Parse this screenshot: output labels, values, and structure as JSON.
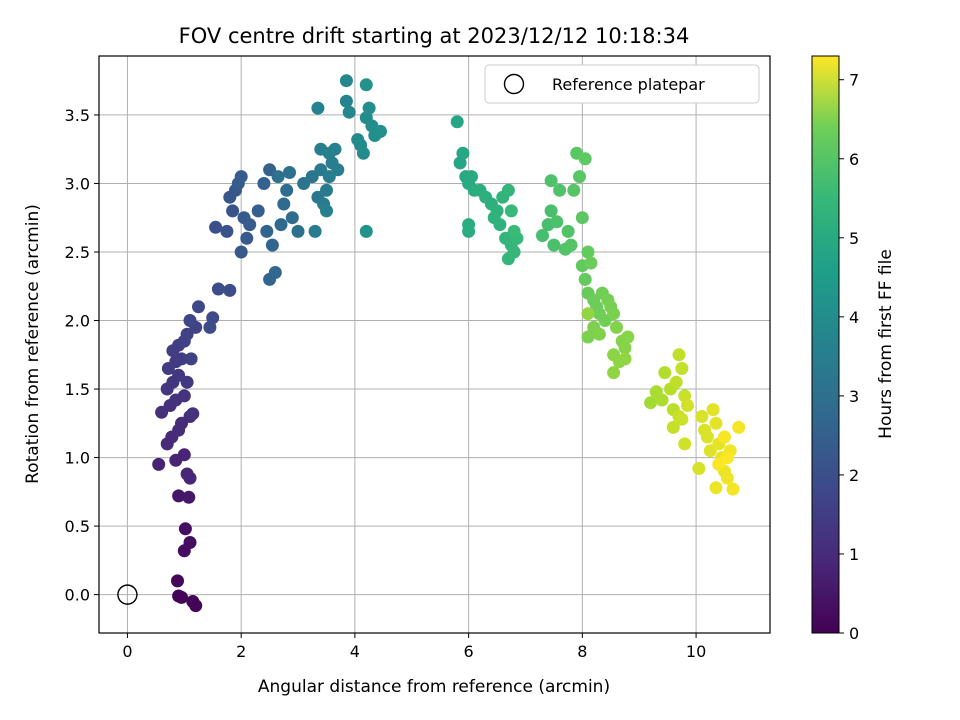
{
  "chart_data": {
    "type": "scatter",
    "title": "FOV centre drift starting at 2023/12/12 10:18:34",
    "xlabel": "Angular distance from reference (arcmin)",
    "ylabel": "Rotation from reference (arcmin)",
    "xlim": [
      -0.5,
      11.3
    ],
    "ylim": [
      -0.28,
      3.93
    ],
    "xticks": [
      0,
      2,
      4,
      6,
      8,
      10
    ],
    "yticks": [
      0.0,
      0.5,
      1.0,
      1.5,
      2.0,
      2.5,
      3.0,
      3.5
    ],
    "ytick_labels": [
      "0.0",
      "0.5",
      "1.0",
      "1.5",
      "2.0",
      "2.5",
      "3.0",
      "3.5"
    ],
    "grid": true,
    "colormap": "viridis",
    "colorbar": {
      "label": "Hours from first FF file",
      "min": 0,
      "max": 7.3,
      "ticks": [
        0,
        1,
        2,
        3,
        4,
        5,
        6,
        7
      ]
    },
    "legend": {
      "position": "top-right",
      "entries": [
        {
          "label": "Reference platepar",
          "marker": "open-circle",
          "color": "#000000"
        }
      ]
    },
    "reference_point": {
      "x": 0,
      "y": 0
    },
    "series": [
      {
        "color_by": "hours",
        "points": [
          [
            1.15,
            -0.05,
            0.05
          ],
          [
            1.2,
            -0.08,
            0.06
          ],
          [
            0.95,
            -0.02,
            0.07
          ],
          [
            0.9,
            -0.01,
            0.08
          ],
          [
            0.88,
            0.1,
            0.12
          ],
          [
            1.0,
            0.32,
            0.25
          ],
          [
            1.1,
            0.38,
            0.28
          ],
          [
            1.02,
            0.48,
            0.3
          ],
          [
            0.9,
            0.72,
            0.45
          ],
          [
            1.08,
            0.71,
            0.47
          ],
          [
            0.55,
            0.95,
            0.7
          ],
          [
            0.85,
            0.98,
            0.72
          ],
          [
            1.0,
            1.02,
            0.75
          ],
          [
            1.05,
            0.88,
            0.78
          ],
          [
            1.1,
            0.85,
            0.8
          ],
          [
            0.7,
            1.1,
            0.85
          ],
          [
            0.78,
            1.15,
            0.88
          ],
          [
            0.9,
            1.2,
            0.9
          ],
          [
            0.95,
            1.25,
            0.92
          ],
          [
            1.1,
            1.3,
            0.95
          ],
          [
            0.6,
            1.33,
            1.0
          ],
          [
            0.75,
            1.38,
            1.02
          ],
          [
            0.85,
            1.42,
            1.05
          ],
          [
            1.0,
            1.45,
            1.08
          ],
          [
            1.15,
            1.32,
            1.1
          ],
          [
            0.7,
            1.5,
            1.15
          ],
          [
            0.8,
            1.55,
            1.18
          ],
          [
            0.9,
            1.6,
            1.2
          ],
          [
            1.05,
            1.55,
            1.22
          ],
          [
            0.72,
            1.65,
            1.25
          ],
          [
            0.85,
            1.7,
            1.28
          ],
          [
            0.95,
            1.72,
            1.3
          ],
          [
            0.8,
            1.78,
            1.35
          ],
          [
            0.9,
            1.82,
            1.38
          ],
          [
            1.0,
            1.85,
            1.4
          ],
          [
            1.12,
            1.72,
            1.42
          ],
          [
            1.05,
            1.9,
            1.45
          ],
          [
            1.2,
            1.95,
            1.5
          ],
          [
            1.1,
            2.0,
            1.55
          ],
          [
            1.25,
            2.1,
            1.6
          ],
          [
            1.5,
            2.02,
            1.65
          ],
          [
            1.45,
            1.95,
            1.68
          ],
          [
            1.6,
            2.23,
            1.72
          ],
          [
            1.8,
            2.22,
            1.75
          ],
          [
            1.55,
            2.68,
            1.8
          ],
          [
            1.75,
            2.65,
            1.85
          ],
          [
            1.85,
            2.8,
            1.9
          ],
          [
            1.8,
            2.9,
            1.95
          ],
          [
            1.9,
            2.95,
            2.0
          ],
          [
            2.0,
            2.5,
            2.02
          ],
          [
            2.1,
            2.6,
            2.05
          ],
          [
            2.05,
            2.75,
            2.08
          ],
          [
            2.15,
            2.7,
            2.1
          ],
          [
            2.0,
            3.05,
            2.12
          ],
          [
            1.95,
            3.0,
            2.15
          ],
          [
            2.3,
            2.8,
            2.2
          ],
          [
            2.4,
            3.0,
            2.25
          ],
          [
            2.5,
            3.1,
            2.3
          ],
          [
            2.45,
            2.65,
            2.35
          ],
          [
            2.55,
            2.55,
            2.38
          ],
          [
            2.6,
            2.35,
            2.4
          ],
          [
            2.5,
            2.3,
            2.42
          ],
          [
            2.7,
            2.7,
            2.45
          ],
          [
            2.75,
            2.85,
            2.5
          ],
          [
            2.8,
            2.95,
            2.55
          ],
          [
            2.9,
            2.75,
            2.6
          ],
          [
            3.0,
            2.65,
            2.65
          ],
          [
            2.65,
            3.05,
            2.7
          ],
          [
            2.85,
            3.08,
            2.72
          ],
          [
            3.1,
            3.0,
            2.8
          ],
          [
            3.25,
            3.05,
            2.85
          ],
          [
            3.35,
            2.9,
            2.9
          ],
          [
            3.4,
            3.1,
            2.95
          ],
          [
            3.5,
            2.95,
            3.0
          ],
          [
            3.3,
            2.65,
            3.02
          ],
          [
            3.45,
            2.85,
            3.05
          ],
          [
            3.55,
            3.05,
            3.08
          ],
          [
            3.6,
            3.15,
            3.1
          ],
          [
            3.7,
            3.1,
            3.12
          ],
          [
            3.4,
            3.25,
            3.15
          ],
          [
            3.55,
            3.22,
            3.18
          ],
          [
            3.65,
            3.25,
            3.2
          ],
          [
            3.5,
            2.8,
            3.22
          ],
          [
            3.35,
            3.55,
            3.25
          ],
          [
            3.85,
            3.6,
            3.3
          ],
          [
            3.9,
            3.52,
            3.35
          ],
          [
            3.85,
            3.75,
            3.4
          ],
          [
            4.05,
            3.32,
            3.45
          ],
          [
            4.1,
            3.28,
            3.5
          ],
          [
            4.15,
            3.22,
            3.52
          ],
          [
            4.2,
            3.48,
            3.55
          ],
          [
            4.25,
            3.55,
            3.58
          ],
          [
            4.3,
            3.42,
            3.6
          ],
          [
            4.35,
            3.35,
            3.62
          ],
          [
            4.45,
            3.38,
            3.65
          ],
          [
            4.2,
            3.72,
            3.7
          ],
          [
            4.2,
            2.65,
            3.75
          ],
          [
            5.8,
            3.45,
            4.3
          ],
          [
            5.85,
            3.15,
            4.32
          ],
          [
            5.9,
            3.22,
            4.35
          ],
          [
            5.95,
            3.05,
            4.38
          ],
          [
            6.0,
            3.0,
            4.4
          ],
          [
            6.05,
            3.05,
            4.45
          ],
          [
            6.1,
            2.95,
            4.48
          ],
          [
            6.0,
            2.7,
            4.5
          ],
          [
            6.0,
            2.65,
            4.52
          ],
          [
            6.2,
            2.95,
            4.55
          ],
          [
            6.3,
            2.9,
            4.6
          ],
          [
            6.4,
            2.85,
            4.62
          ],
          [
            6.5,
            2.8,
            4.65
          ],
          [
            6.45,
            2.75,
            4.7
          ],
          [
            6.55,
            2.7,
            4.72
          ],
          [
            6.6,
            2.9,
            4.75
          ],
          [
            6.7,
            2.95,
            4.78
          ],
          [
            6.65,
            2.6,
            4.8
          ],
          [
            6.75,
            2.55,
            4.82
          ],
          [
            6.7,
            2.45,
            4.85
          ],
          [
            6.8,
            2.5,
            4.88
          ],
          [
            6.85,
            2.6,
            4.9
          ],
          [
            6.75,
            2.8,
            4.92
          ],
          [
            6.8,
            2.65,
            4.95
          ],
          [
            7.3,
            2.62,
            5.1
          ],
          [
            7.4,
            2.7,
            5.12
          ],
          [
            7.45,
            2.8,
            5.15
          ],
          [
            7.5,
            2.55,
            5.18
          ],
          [
            7.55,
            2.72,
            5.2
          ],
          [
            7.45,
            3.02,
            5.22
          ],
          [
            7.6,
            2.95,
            5.25
          ],
          [
            7.7,
            2.52,
            5.28
          ],
          [
            7.75,
            2.65,
            5.3
          ],
          [
            7.8,
            2.55,
            5.32
          ],
          [
            7.85,
            2.95,
            5.35
          ],
          [
            7.9,
            3.22,
            5.38
          ],
          [
            7.95,
            3.05,
            5.4
          ],
          [
            8.0,
            2.75,
            5.42
          ],
          [
            8.05,
            3.18,
            5.45
          ],
          [
            8.0,
            2.4,
            5.5
          ],
          [
            8.1,
            2.5,
            5.52
          ],
          [
            8.05,
            2.3,
            5.55
          ],
          [
            8.1,
            2.2,
            5.58
          ],
          [
            8.15,
            2.42,
            5.6
          ],
          [
            8.2,
            2.15,
            5.62
          ],
          [
            8.25,
            2.1,
            5.65
          ],
          [
            8.3,
            2.05,
            5.68
          ],
          [
            8.35,
            2.2,
            5.7
          ],
          [
            8.4,
            2.0,
            5.72
          ],
          [
            8.45,
            2.15,
            5.75
          ],
          [
            8.5,
            2.1,
            5.78
          ],
          [
            8.55,
            2.05,
            5.8
          ],
          [
            8.1,
            1.88,
            5.82
          ],
          [
            8.2,
            1.95,
            5.85
          ],
          [
            8.3,
            1.9,
            5.88
          ],
          [
            8.6,
            1.95,
            5.9
          ],
          [
            8.7,
            1.85,
            5.92
          ],
          [
            8.75,
            1.8,
            5.95
          ],
          [
            8.8,
            1.88,
            5.98
          ],
          [
            8.55,
            1.75,
            6.0
          ],
          [
            8.65,
            1.7,
            6.02
          ],
          [
            8.55,
            1.62,
            6.05
          ],
          [
            8.75,
            1.72,
            6.08
          ],
          [
            8.1,
            2.05,
            6.1
          ],
          [
            9.2,
            1.4,
            6.3
          ],
          [
            9.3,
            1.48,
            6.35
          ],
          [
            9.4,
            1.42,
            6.4
          ],
          [
            9.45,
            1.62,
            6.45
          ],
          [
            9.55,
            1.5,
            6.5
          ],
          [
            9.6,
            1.35,
            6.55
          ],
          [
            9.65,
            1.55,
            6.6
          ],
          [
            9.7,
            1.75,
            6.62
          ],
          [
            9.75,
            1.65,
            6.65
          ],
          [
            9.6,
            1.22,
            6.68
          ],
          [
            9.7,
            1.3,
            6.7
          ],
          [
            9.8,
            1.45,
            6.72
          ],
          [
            9.75,
            1.28,
            6.75
          ],
          [
            9.8,
            1.1,
            6.78
          ],
          [
            9.85,
            1.38,
            6.8
          ],
          [
            10.05,
            0.92,
            6.85
          ],
          [
            10.1,
            1.3,
            6.88
          ],
          [
            10.15,
            1.2,
            6.9
          ],
          [
            10.2,
            1.15,
            6.92
          ],
          [
            10.25,
            1.05,
            6.95
          ],
          [
            10.3,
            1.35,
            6.98
          ],
          [
            10.35,
            1.25,
            7.0
          ],
          [
            10.4,
            1.1,
            7.02
          ],
          [
            10.45,
            1.0,
            7.05
          ],
          [
            10.5,
            0.9,
            7.08
          ],
          [
            10.35,
            0.78,
            7.1
          ],
          [
            10.55,
            0.85,
            7.12
          ],
          [
            10.6,
            1.05,
            7.15
          ],
          [
            10.65,
            0.77,
            7.18
          ],
          [
            10.75,
            1.22,
            7.2
          ],
          [
            10.5,
            1.15,
            7.22
          ],
          [
            10.4,
            0.95,
            7.25
          ],
          [
            10.55,
            1.0,
            7.28
          ]
        ]
      }
    ]
  }
}
